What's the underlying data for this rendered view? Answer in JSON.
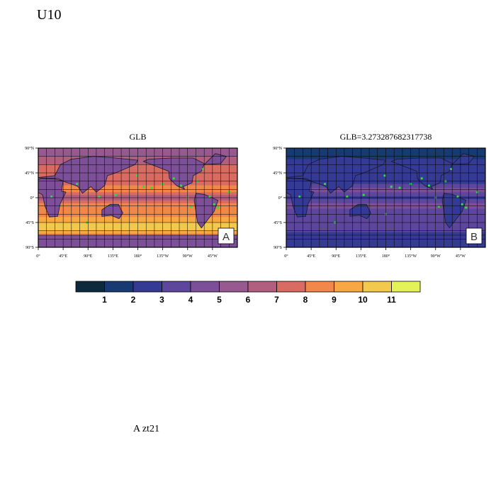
{
  "page_title": "U10",
  "footer_label": "A  zt21",
  "colorbar": {
    "labels": [
      "1",
      "2",
      "3",
      "4",
      "5",
      "6",
      "7",
      "8",
      "9",
      "10",
      "11"
    ],
    "colors": [
      "#0c2a3c",
      "#173a72",
      "#353a94",
      "#5d479c",
      "#7c4f98",
      "#97598f",
      "#b25e7e",
      "#d86b62",
      "#f1874a",
      "#f7a743",
      "#f2c94c",
      "#e4f25a"
    ]
  },
  "chart_data": [
    {
      "type": "heatmap",
      "title": "GLB",
      "panel_label": "A",
      "lat_tick_labels": [
        "90°N",
        "45°N",
        "0°",
        "45°S",
        "90°S"
      ],
      "lon_tick_labels": [
        "0°",
        "45°E",
        "90°E",
        "135°E",
        "180°",
        "135°W",
        "90°W",
        "45°W"
      ],
      "zonal_profile": [
        {
          "lat": 90,
          "value": 5.0
        },
        {
          "lat": 60,
          "value": 7.0
        },
        {
          "lat": 45,
          "value": 8.0
        },
        {
          "lat": 30,
          "value": 7.0
        },
        {
          "lat": 15,
          "value": 9.0
        },
        {
          "lat": 0,
          "value": 6.0
        },
        {
          "lat": -15,
          "value": 9.0
        },
        {
          "lat": -30,
          "value": 8.5
        },
        {
          "lat": -45,
          "value": 10.0
        },
        {
          "lat": -55,
          "value": 11.0
        },
        {
          "lat": -70,
          "value": 8.0
        },
        {
          "lat": -90,
          "value": 4.0
        }
      ],
      "land_value": 4.5
    },
    {
      "type": "heatmap",
      "title": "GLB=3.273287682317738",
      "panel_label": "B",
      "lat_tick_labels": [
        "90°N",
        "45°N",
        "0°",
        "45°S",
        "90°S"
      ],
      "lon_tick_labels": [
        "0°",
        "45°E",
        "90°E",
        "135°E",
        "180°",
        "135°W",
        "90°W",
        "45°W"
      ],
      "zonal_profile": [
        {
          "lat": 90,
          "value": 1.0
        },
        {
          "lat": 60,
          "value": 2.5
        },
        {
          "lat": 45,
          "value": 3.0
        },
        {
          "lat": 30,
          "value": 2.0
        },
        {
          "lat": 15,
          "value": 4.5
        },
        {
          "lat": 0,
          "value": 2.5
        },
        {
          "lat": -15,
          "value": 4.5
        },
        {
          "lat": -30,
          "value": 3.0
        },
        {
          "lat": -45,
          "value": 3.5
        },
        {
          "lat": -55,
          "value": 4.0
        },
        {
          "lat": -70,
          "value": 2.0
        },
        {
          "lat": -90,
          "value": 1.0
        }
      ],
      "land_value": 2.0
    }
  ]
}
